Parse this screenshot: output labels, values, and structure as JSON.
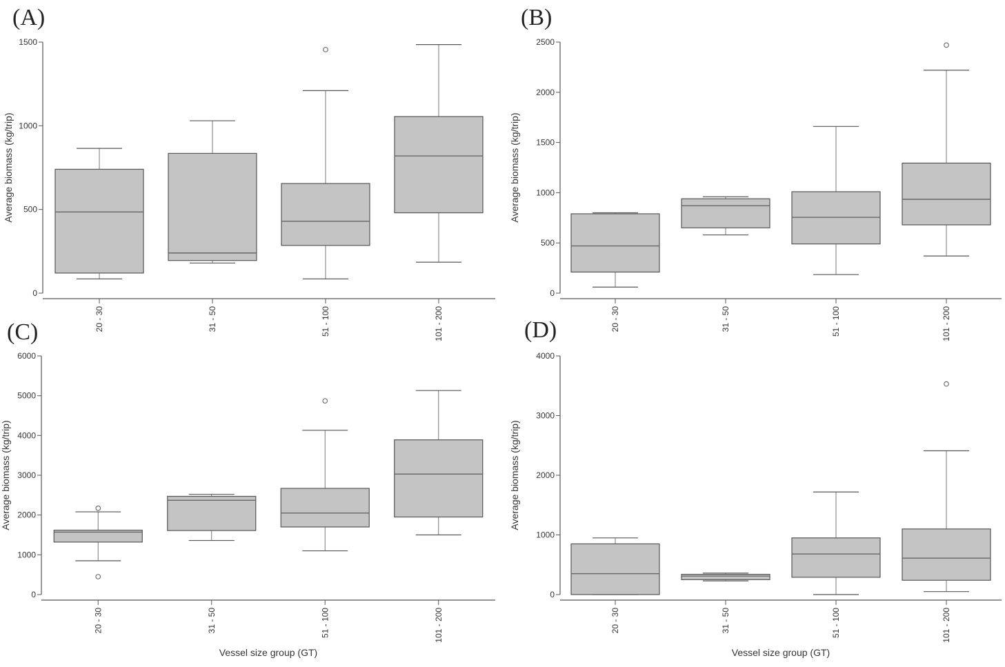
{
  "chart_data": [
    {
      "type": "boxplot",
      "panel_label": "(A)",
      "ylabel": "Average biomass (kg/trip)",
      "xlabel": "",
      "categories": [
        "20 - 30",
        "31 - 50",
        "51 - 100",
        "101 - 200"
      ],
      "ylim": [
        0,
        1500
      ],
      "yticks": [
        0,
        500,
        1000,
        1500
      ],
      "boxes": [
        {
          "category": "20 - 30",
          "whisker_low": 85,
          "q1": 120,
          "median": 485,
          "q3": 740,
          "whisker_high": 865,
          "outliers": []
        },
        {
          "category": "31 - 50",
          "whisker_low": 180,
          "q1": 195,
          "median": 240,
          "q3": 835,
          "whisker_high": 1030,
          "outliers": []
        },
        {
          "category": "51 - 100",
          "whisker_low": 85,
          "q1": 285,
          "median": 430,
          "q3": 655,
          "whisker_high": 1210,
          "outliers": [
            1455
          ]
        },
        {
          "category": "101 - 200",
          "whisker_low": 185,
          "q1": 480,
          "median": 820,
          "q3": 1055,
          "whisker_high": 1485,
          "outliers": []
        }
      ]
    },
    {
      "type": "boxplot",
      "panel_label": "(B)",
      "ylabel": "Average biomass (kg/trip)",
      "xlabel": "",
      "categories": [
        "20 - 30",
        "31 - 50",
        "51 - 100",
        "101 - 200"
      ],
      "ylim": [
        0,
        2500
      ],
      "yticks": [
        0,
        500,
        1000,
        1500,
        2000,
        2500
      ],
      "boxes": [
        {
          "category": "20 - 30",
          "whisker_low": 60,
          "q1": 210,
          "median": 470,
          "q3": 790,
          "whisker_high": 800,
          "outliers": []
        },
        {
          "category": "31 - 50",
          "whisker_low": 580,
          "q1": 650,
          "median": 870,
          "q3": 940,
          "whisker_high": 960,
          "outliers": []
        },
        {
          "category": "51 - 100",
          "whisker_low": 185,
          "q1": 490,
          "median": 755,
          "q3": 1010,
          "whisker_high": 1660,
          "outliers": []
        },
        {
          "category": "101 - 200",
          "whisker_low": 370,
          "q1": 680,
          "median": 935,
          "q3": 1295,
          "whisker_high": 2220,
          "outliers": [
            2470
          ]
        }
      ]
    },
    {
      "type": "boxplot",
      "panel_label": "(C)",
      "ylabel": "Average biomass (kg/trip)",
      "xlabel": "Vessel size group (GT)",
      "categories": [
        "20 - 30",
        "31 - 50",
        "51 - 100",
        "101 - 200"
      ],
      "ylim": [
        0,
        6000
      ],
      "yticks": [
        0,
        1000,
        2000,
        3000,
        4000,
        5000,
        6000
      ],
      "boxes": [
        {
          "category": "20 - 30",
          "whisker_low": 850,
          "q1": 1320,
          "median": 1570,
          "q3": 1620,
          "whisker_high": 2080,
          "outliers": [
            450,
            2170
          ]
        },
        {
          "category": "31 - 50",
          "whisker_low": 1360,
          "q1": 1610,
          "median": 2370,
          "q3": 2470,
          "whisker_high": 2520,
          "outliers": []
        },
        {
          "category": "51 - 100",
          "whisker_low": 1100,
          "q1": 1700,
          "median": 2050,
          "q3": 2670,
          "whisker_high": 4130,
          "outliers": [
            4870
          ]
        },
        {
          "category": "101 - 200",
          "whisker_low": 1500,
          "q1": 1950,
          "median": 3030,
          "q3": 3890,
          "whisker_high": 5130,
          "outliers": []
        }
      ]
    },
    {
      "type": "boxplot",
      "panel_label": "(D)",
      "ylabel": "Average biomass (kg/trip)",
      "xlabel": "Vessel size group (GT)",
      "categories": [
        "20 - 30",
        "31 - 50",
        "51 - 100",
        "101 - 200"
      ],
      "ylim": [
        0,
        4000
      ],
      "yticks": [
        0,
        1000,
        2000,
        3000,
        4000
      ],
      "boxes": [
        {
          "category": "20 - 30",
          "whisker_low": 0,
          "q1": 0,
          "median": 350,
          "q3": 850,
          "whisker_high": 950,
          "outliers": []
        },
        {
          "category": "31 - 50",
          "whisker_low": 230,
          "q1": 250,
          "median": 310,
          "q3": 340,
          "whisker_high": 360,
          "outliers": []
        },
        {
          "category": "51 - 100",
          "whisker_low": 0,
          "q1": 290,
          "median": 680,
          "q3": 950,
          "whisker_high": 1720,
          "outliers": []
        },
        {
          "category": "101 - 200",
          "whisker_low": 50,
          "q1": 240,
          "median": 610,
          "q3": 1100,
          "whisker_high": 2410,
          "outliers": [
            3530
          ]
        }
      ]
    }
  ]
}
